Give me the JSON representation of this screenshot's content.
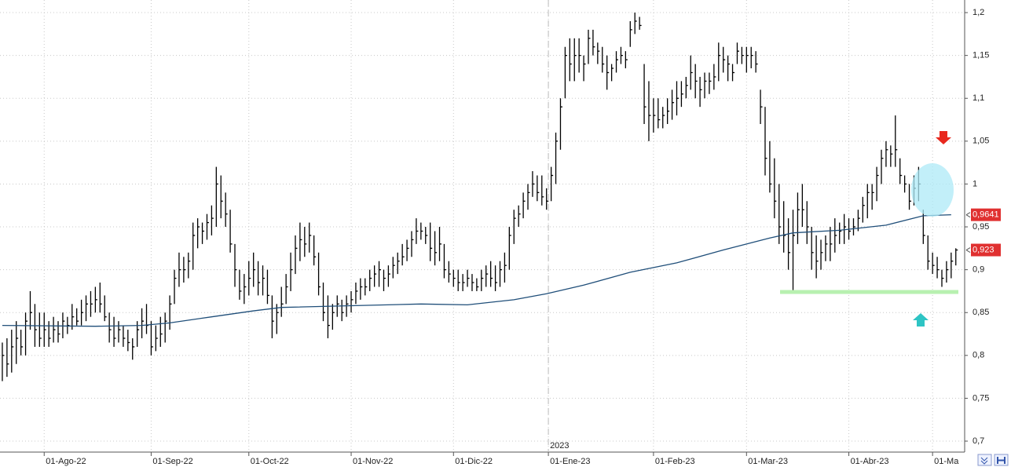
{
  "chart_data": {
    "type": "hlc",
    "ylim": [
      0.6872,
      1.2147
    ],
    "yticks": [
      {
        "value": 1.2,
        "label": "1,2"
      },
      {
        "value": 1.15,
        "label": "1,15"
      },
      {
        "value": 1.1,
        "label": "1,1"
      },
      {
        "value": 1.05,
        "label": "1,05"
      },
      1,
      {
        "value": 0.95,
        "label": "0,95"
      },
      {
        "value": 0.9,
        "label": "0,9"
      },
      {
        "value": 0.85,
        "label": "0,85"
      },
      {
        "value": 0.8,
        "label": "0,8"
      },
      {
        "value": 0.75,
        "label": "0,75"
      },
      {
        "value": 0.7,
        "label": "0,7"
      }
    ],
    "xlim": [
      -0.5,
      206.9
    ],
    "xticks": [
      {
        "value": 9,
        "label": "01-Ago-22"
      },
      {
        "value": 32,
        "label": "01-Sep-22"
      },
      {
        "value": 53,
        "label": "01-Oct-22"
      },
      {
        "value": 75,
        "label": "01-Nov-22"
      },
      {
        "value": 97,
        "label": "01-Dic-22"
      },
      {
        "value": 117.4,
        "label": "01-Ene-23"
      },
      {
        "value": 140,
        "label": "01-Feb-23"
      },
      {
        "value": 160,
        "label": "01-Mar-23"
      },
      {
        "value": 182,
        "label": "01-Abr-23"
      },
      {
        "value": 200,
        "label": "01-Ma"
      }
    ],
    "grid": true,
    "color": "#000000",
    "year_divider": {
      "x": 117.4,
      "label": "2023"
    },
    "hlc": [
      [
        0.815,
        0.77,
        0.8
      ],
      [
        0.82,
        0.775,
        0.79
      ],
      [
        0.83,
        0.78,
        0.81
      ],
      [
        0.84,
        0.79,
        0.82
      ],
      [
        0.83,
        0.8,
        0.81
      ],
      [
        0.85,
        0.8,
        0.84
      ],
      [
        0.875,
        0.83,
        0.85
      ],
      [
        0.86,
        0.81,
        0.83
      ],
      [
        0.85,
        0.81,
        0.82
      ],
      [
        0.85,
        0.81,
        0.83
      ],
      [
        0.84,
        0.81,
        0.82
      ],
      [
        0.845,
        0.815,
        0.83
      ],
      [
        0.84,
        0.815,
        0.825
      ],
      [
        0.85,
        0.82,
        0.84
      ],
      [
        0.845,
        0.825,
        0.835
      ],
      [
        0.86,
        0.83,
        0.845
      ],
      [
        0.855,
        0.835,
        0.84
      ],
      [
        0.865,
        0.835,
        0.85
      ],
      [
        0.87,
        0.84,
        0.86
      ],
      [
        0.875,
        0.845,
        0.86
      ],
      [
        0.88,
        0.85,
        0.865
      ],
      [
        0.885,
        0.85,
        0.86
      ],
      [
        0.87,
        0.84,
        0.845
      ],
      [
        0.85,
        0.815,
        0.83
      ],
      [
        0.845,
        0.81,
        0.82
      ],
      [
        0.84,
        0.815,
        0.83
      ],
      [
        0.835,
        0.81,
        0.82
      ],
      [
        0.83,
        0.805,
        0.815
      ],
      [
        0.82,
        0.795,
        0.81
      ],
      [
        0.84,
        0.81,
        0.83
      ],
      [
        0.855,
        0.82,
        0.84
      ],
      [
        0.86,
        0.825,
        0.835
      ],
      [
        0.84,
        0.8,
        0.81
      ],
      [
        0.835,
        0.805,
        0.82
      ],
      [
        0.845,
        0.81,
        0.825
      ],
      [
        0.85,
        0.815,
        0.84
      ],
      [
        0.87,
        0.83,
        0.86
      ],
      [
        0.9,
        0.86,
        0.89
      ],
      [
        0.92,
        0.88,
        0.9
      ],
      [
        0.915,
        0.885,
        0.9
      ],
      [
        0.92,
        0.89,
        0.91
      ],
      [
        0.955,
        0.9,
        0.94
      ],
      [
        0.96,
        0.925,
        0.95
      ],
      [
        0.955,
        0.93,
        0.945
      ],
      [
        0.965,
        0.935,
        0.955
      ],
      [
        0.975,
        0.94,
        0.96
      ],
      [
        1.02,
        0.95,
        1.0
      ],
      [
        1.01,
        0.96,
        0.98
      ],
      [
        0.99,
        0.95,
        0.965
      ],
      [
        0.97,
        0.92,
        0.93
      ],
      [
        0.93,
        0.88,
        0.9
      ],
      [
        0.9,
        0.865,
        0.875
      ],
      [
        0.895,
        0.86,
        0.88
      ],
      [
        0.91,
        0.87,
        0.89
      ],
      [
        0.92,
        0.88,
        0.9
      ],
      [
        0.91,
        0.87,
        0.885
      ],
      [
        0.905,
        0.87,
        0.89
      ],
      [
        0.9,
        0.86,
        0.87
      ],
      [
        0.87,
        0.82,
        0.84
      ],
      [
        0.86,
        0.825,
        0.85
      ],
      [
        0.88,
        0.845,
        0.86
      ],
      [
        0.895,
        0.86,
        0.88
      ],
      [
        0.92,
        0.875,
        0.9
      ],
      [
        0.94,
        0.895,
        0.925
      ],
      [
        0.955,
        0.91,
        0.935
      ],
      [
        0.95,
        0.915,
        0.93
      ],
      [
        0.955,
        0.92,
        0.94
      ],
      [
        0.94,
        0.905,
        0.915
      ],
      [
        0.92,
        0.87,
        0.88
      ],
      [
        0.885,
        0.84,
        0.85
      ],
      [
        0.87,
        0.82,
        0.835
      ],
      [
        0.86,
        0.83,
        0.85
      ],
      [
        0.87,
        0.845,
        0.86
      ],
      [
        0.865,
        0.84,
        0.85
      ],
      [
        0.87,
        0.845,
        0.86
      ],
      [
        0.875,
        0.85,
        0.865
      ],
      [
        0.885,
        0.86,
        0.875
      ],
      [
        0.89,
        0.865,
        0.88
      ],
      [
        0.89,
        0.87,
        0.88
      ],
      [
        0.9,
        0.875,
        0.89
      ],
      [
        0.905,
        0.88,
        0.895
      ],
      [
        0.91,
        0.88,
        0.9
      ],
      [
        0.9,
        0.875,
        0.89
      ],
      [
        0.905,
        0.88,
        0.895
      ],
      [
        0.915,
        0.89,
        0.905
      ],
      [
        0.92,
        0.895,
        0.91
      ],
      [
        0.93,
        0.905,
        0.915
      ],
      [
        0.935,
        0.91,
        0.925
      ],
      [
        0.945,
        0.915,
        0.935
      ],
      [
        0.96,
        0.93,
        0.945
      ],
      [
        0.955,
        0.935,
        0.945
      ],
      [
        0.95,
        0.93,
        0.94
      ],
      [
        0.955,
        0.91,
        0.925
      ],
      [
        0.945,
        0.905,
        0.92
      ],
      [
        0.95,
        0.91,
        0.93
      ],
      [
        0.93,
        0.89,
        0.9
      ],
      [
        0.91,
        0.885,
        0.895
      ],
      [
        0.9,
        0.88,
        0.89
      ],
      [
        0.9,
        0.875,
        0.885
      ],
      [
        0.895,
        0.875,
        0.885
      ],
      [
        0.9,
        0.88,
        0.89
      ],
      [
        0.895,
        0.875,
        0.885
      ],
      [
        0.89,
        0.875,
        0.88
      ],
      [
        0.9,
        0.875,
        0.89
      ],
      [
        0.905,
        0.88,
        0.895
      ],
      [
        0.91,
        0.88,
        0.89
      ],
      [
        0.905,
        0.875,
        0.885
      ],
      [
        0.91,
        0.88,
        0.9
      ],
      [
        0.92,
        0.885,
        0.905
      ],
      [
        0.95,
        0.9,
        0.94
      ],
      [
        0.97,
        0.93,
        0.96
      ],
      [
        0.975,
        0.95,
        0.965
      ],
      [
        0.99,
        0.96,
        0.98
      ],
      [
        1.0,
        0.97,
        0.99
      ],
      [
        1.015,
        0.985,
        1.0
      ],
      [
        1.01,
        0.98,
        0.99
      ],
      [
        1.01,
        0.975,
        0.985
      ],
      [
        0.995,
        0.97,
        0.98
      ],
      [
        1.02,
        0.98,
        1.01
      ],
      [
        1.06,
        1.0,
        1.05
      ],
      [
        1.1,
        1.04,
        1.09
      ],
      [
        1.16,
        1.1,
        1.15
      ],
      [
        1.17,
        1.12,
        1.14
      ],
      [
        1.17,
        1.12,
        1.15
      ],
      [
        1.17,
        1.13,
        1.15
      ],
      [
        1.15,
        1.12,
        1.14
      ],
      [
        1.18,
        1.14,
        1.17
      ],
      [
        1.18,
        1.15,
        1.16
      ],
      [
        1.165,
        1.14,
        1.155
      ],
      [
        1.16,
        1.13,
        1.14
      ],
      [
        1.15,
        1.11,
        1.13
      ],
      [
        1.14,
        1.12,
        1.135
      ],
      [
        1.155,
        1.13,
        1.145
      ],
      [
        1.16,
        1.14,
        1.15
      ],
      [
        1.155,
        1.135,
        1.145
      ],
      [
        1.19,
        1.16,
        1.18
      ],
      [
        1.2,
        1.175,
        1.19
      ],
      [
        1.195,
        1.18,
        1.185
      ],
      [
        1.14,
        1.07,
        1.09
      ],
      [
        1.12,
        1.05,
        1.08
      ],
      [
        1.1,
        1.06,
        1.08
      ],
      [
        1.1,
        1.065,
        1.075
      ],
      [
        1.09,
        1.065,
        1.08
      ],
      [
        1.1,
        1.07,
        1.085
      ],
      [
        1.11,
        1.075,
        1.095
      ],
      [
        1.12,
        1.08,
        1.1
      ],
      [
        1.12,
        1.09,
        1.105
      ],
      [
        1.125,
        1.1,
        1.115
      ],
      [
        1.15,
        1.11,
        1.13
      ],
      [
        1.14,
        1.1,
        1.12
      ],
      [
        1.125,
        1.09,
        1.11
      ],
      [
        1.13,
        1.1,
        1.12
      ],
      [
        1.13,
        1.105,
        1.12
      ],
      [
        1.14,
        1.11,
        1.125
      ],
      [
        1.165,
        1.12,
        1.15
      ],
      [
        1.16,
        1.13,
        1.145
      ],
      [
        1.15,
        1.12,
        1.14
      ],
      [
        1.14,
        1.12,
        1.13
      ],
      [
        1.165,
        1.14,
        1.155
      ],
      [
        1.16,
        1.14,
        1.15
      ],
      [
        1.16,
        1.13,
        1.15
      ],
      [
        1.16,
        1.135,
        1.15
      ],
      [
        1.155,
        1.13,
        1.14
      ],
      [
        1.11,
        1.07,
        1.09
      ],
      [
        1.09,
        1.01,
        1.03
      ],
      [
        1.05,
        0.99,
        1.0
      ],
      [
        1.03,
        0.96,
        0.98
      ],
      [
        1.0,
        0.93,
        0.95
      ],
      [
        0.98,
        0.92,
        0.94
      ],
      [
        0.96,
        0.9,
        0.92
      ],
      [
        0.97,
        0.875,
        0.94
      ],
      [
        0.99,
        0.93,
        0.97
      ],
      [
        1.0,
        0.95,
        0.97
      ],
      [
        0.98,
        0.93,
        0.95
      ],
      [
        0.95,
        0.9,
        0.92
      ],
      [
        0.94,
        0.89,
        0.91
      ],
      [
        0.935,
        0.9,
        0.92
      ],
      [
        0.94,
        0.91,
        0.93
      ],
      [
        0.95,
        0.91,
        0.93
      ],
      [
        0.96,
        0.92,
        0.94
      ],
      [
        0.955,
        0.93,
        0.945
      ],
      [
        0.965,
        0.93,
        0.95
      ],
      [
        0.96,
        0.935,
        0.945
      ],
      [
        0.96,
        0.94,
        0.95
      ],
      [
        0.97,
        0.945,
        0.96
      ],
      [
        0.985,
        0.955,
        0.975
      ],
      [
        1.0,
        0.96,
        0.99
      ],
      [
        1.0,
        0.97,
        0.99
      ],
      [
        1.02,
        0.98,
        1.01
      ],
      [
        1.04,
        1.0,
        1.03
      ],
      [
        1.05,
        1.02,
        1.04
      ],
      [
        1.045,
        1.02,
        1.035
      ],
      [
        1.08,
        1.02,
        1.04
      ],
      [
        1.03,
        1.0,
        1.01
      ],
      [
        1.01,
        0.99,
        1.0
      ],
      [
        1.0,
        0.97,
        0.98
      ],
      [
        1.01,
        0.975,
        0.995
      ],
      [
        1.02,
        0.98,
        1.0
      ],
      [
        0.97,
        0.93,
        0.94
      ],
      [
        0.94,
        0.9,
        0.91
      ],
      [
        0.92,
        0.895,
        0.905
      ],
      [
        0.915,
        0.89,
        0.9
      ],
      [
        0.9,
        0.88,
        0.89
      ],
      [
        0.91,
        0.885,
        0.9
      ],
      [
        0.92,
        0.89,
        0.91
      ],
      [
        0.925,
        0.905,
        0.923
      ]
    ],
    "moving_average": {
      "color": "#1f4e79",
      "x": [
        0,
        20,
        30,
        36,
        45,
        54,
        60,
        75,
        90,
        100,
        110,
        117,
        125,
        135,
        145,
        155,
        165,
        170,
        180,
        190,
        198,
        204
      ],
      "values": [
        0.835,
        0.834,
        0.835,
        0.838,
        0.845,
        0.852,
        0.856,
        0.858,
        0.86,
        0.859,
        0.865,
        0.872,
        0.882,
        0.897,
        0.908,
        0.923,
        0.937,
        0.943,
        0.946,
        0.952,
        0.963,
        0.9641
      ]
    },
    "support_level": 0.874,
    "price_labels": [
      {
        "value": 0.9641,
        "label": "0,9641",
        "color": "#e03030"
      },
      {
        "value": 0.923,
        "label": "0,923",
        "color": "#e03030"
      }
    ]
  }
}
